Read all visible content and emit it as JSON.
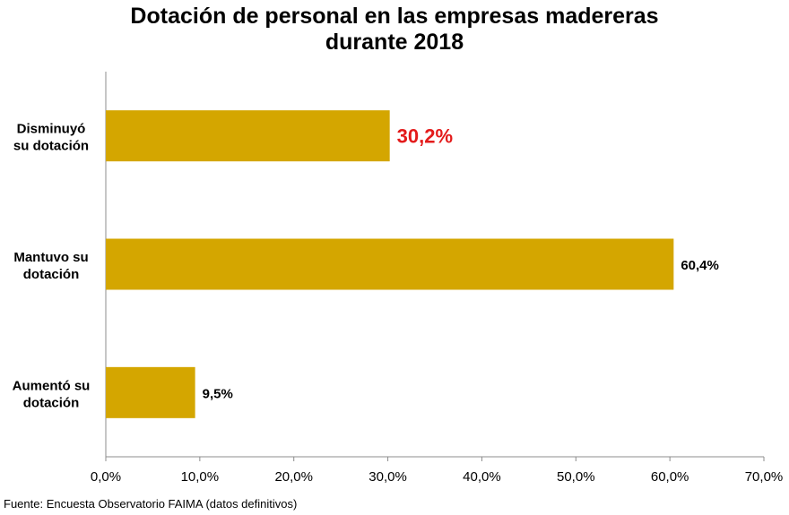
{
  "chart_data": {
    "type": "bar",
    "orientation": "horizontal",
    "title_line1": "Dotación de personal en las empresas madereras",
    "title_line2": "durante 2018",
    "categories": [
      [
        "Disminuyó",
        "su dotación"
      ],
      [
        "Mantuvo su",
        "dotación"
      ],
      [
        "Aumentó su",
        "dotación"
      ]
    ],
    "values": [
      30.2,
      60.4,
      9.5
    ],
    "data_labels": [
      "30,2%",
      "60,4%",
      "9,5%"
    ],
    "highlighted_label_index": 0,
    "x_ticks": [
      "0,0%",
      "10,0%",
      "20,0%",
      "30,0%",
      "40,0%",
      "50,0%",
      "60,0%",
      "70,0%"
    ],
    "xlim": [
      0,
      70
    ],
    "grid": false,
    "colors": {
      "bar": "#D4A600",
      "highlight_label": "#E31B1B",
      "axis": "#8C8C8C"
    }
  },
  "source": "Fuente: Encuesta Observatorio FAIMA (datos definitivos)"
}
